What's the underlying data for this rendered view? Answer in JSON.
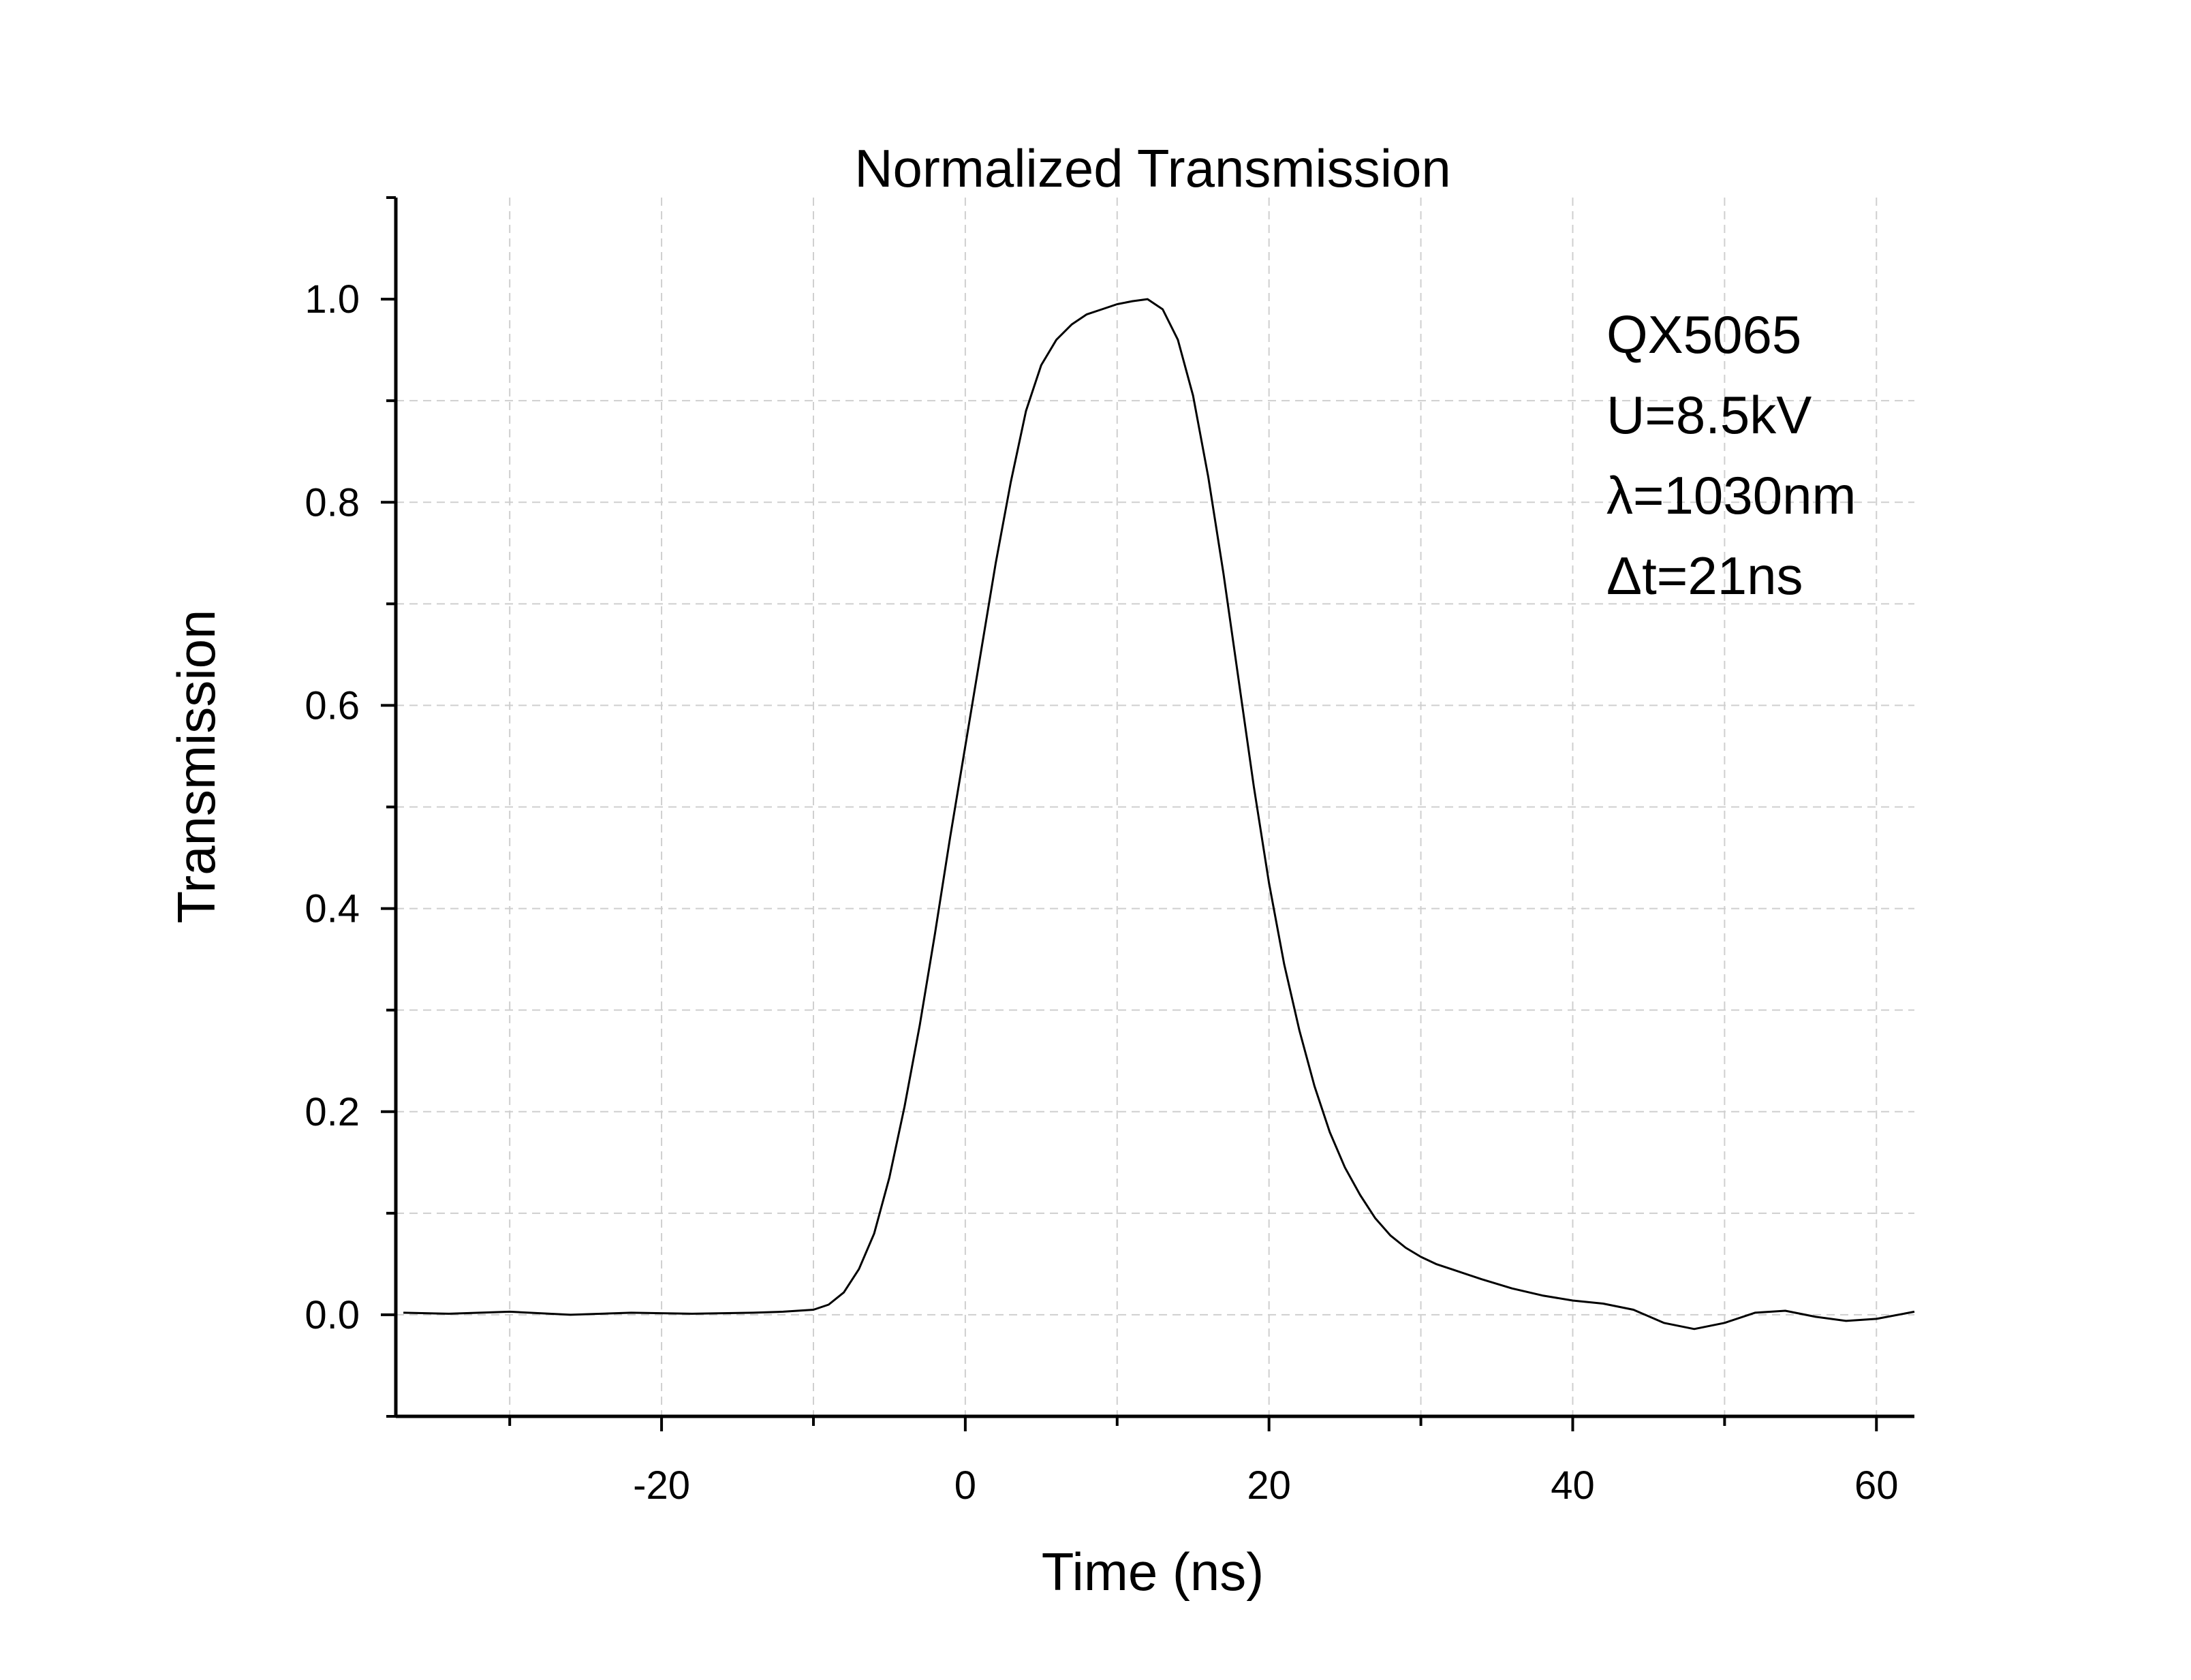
{
  "chart_data": {
    "type": "line",
    "title": "Normalized Transmission",
    "xlabel": "Time (ns)",
    "ylabel": "Transmission",
    "xlim": [
      -37.5,
      62.5
    ],
    "ylim": [
      -0.1,
      1.1
    ],
    "x_ticks": [
      -20,
      0,
      20,
      40,
      60
    ],
    "y_ticks": [
      0.0,
      0.2,
      0.4,
      0.6,
      0.8,
      1.0
    ],
    "x_tick_labels": [
      "-20",
      "0",
      "20",
      "40",
      "60"
    ],
    "y_tick_labels": [
      "0.0",
      "0.2",
      "0.4",
      "0.6",
      "0.8",
      "1.0"
    ],
    "grid": true,
    "annotations": [
      "QX5065",
      "U=8.5kV",
      "λ=1030nm",
      "Δt=21ns"
    ],
    "series": [
      {
        "color": "#000000",
        "x": [
          -37,
          -34,
          -30,
          -26,
          -22,
          -18,
          -14,
          -12,
          -10,
          -9,
          -8,
          -7,
          -6,
          -5,
          -4,
          -3,
          -2,
          -1,
          0,
          1,
          2,
          3,
          4,
          5,
          6,
          7,
          8,
          9,
          10,
          11,
          12,
          13,
          14,
          15,
          16,
          17,
          18,
          19,
          20,
          21,
          22,
          23,
          24,
          25,
          26,
          27,
          28,
          29,
          30,
          31,
          32,
          34,
          36,
          38,
          40,
          42,
          44,
          46,
          48,
          50,
          52,
          54,
          56,
          58,
          60,
          62.5
        ],
        "y": [
          0.002,
          0.001,
          0.003,
          0.0,
          0.002,
          0.001,
          0.002,
          0.003,
          0.005,
          0.01,
          0.022,
          0.045,
          0.08,
          0.135,
          0.205,
          0.285,
          0.375,
          0.47,
          0.56,
          0.65,
          0.74,
          0.82,
          0.89,
          0.935,
          0.96,
          0.975,
          0.985,
          0.99,
          0.995,
          0.998,
          1.0,
          0.99,
          0.96,
          0.905,
          0.825,
          0.73,
          0.625,
          0.52,
          0.425,
          0.345,
          0.28,
          0.225,
          0.18,
          0.145,
          0.118,
          0.095,
          0.078,
          0.066,
          0.057,
          0.05,
          0.045,
          0.035,
          0.026,
          0.019,
          0.014,
          0.011,
          0.005,
          -0.008,
          -0.014,
          -0.008,
          0.002,
          0.004,
          -0.002,
          -0.006,
          -0.004,
          0.003
        ]
      }
    ]
  }
}
